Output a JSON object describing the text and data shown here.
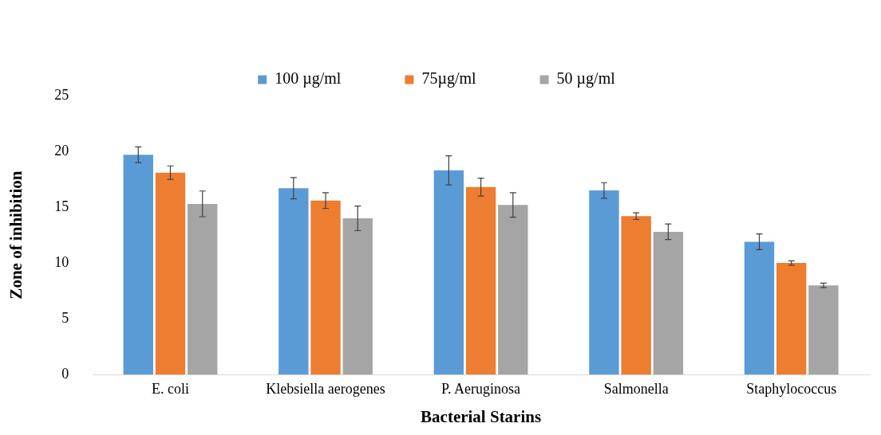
{
  "chart_data": {
    "type": "bar",
    "xlabel": "Bacterial Starins",
    "ylabel": "Zone of inhibition",
    "categories": [
      "E. coli",
      "Klebsiella aerogenes",
      "P. Aeruginosa",
      "Salmonella",
      "Staphylococcus"
    ],
    "series": [
      {
        "name": "100 µg/ml",
        "color": "#5b9bd5",
        "values": [
          19.7,
          16.7,
          18.3,
          16.5,
          11.9
        ],
        "errors": [
          0.7,
          0.95,
          1.3,
          0.7,
          0.7
        ]
      },
      {
        "name": "75µg/ml",
        "color": "#ed7d31",
        "values": [
          18.1,
          15.6,
          16.8,
          14.2,
          10.0
        ],
        "errors": [
          0.6,
          0.7,
          0.8,
          0.3,
          0.2
        ]
      },
      {
        "name": "50 µg/ml",
        "color": "#a5a5a5",
        "values": [
          15.3,
          14.0,
          15.2,
          12.8,
          8.0
        ],
        "errors": [
          1.15,
          1.1,
          1.1,
          0.7,
          0.2
        ]
      }
    ],
    "ylim": [
      0,
      25
    ],
    "yticks": [
      0,
      5,
      10,
      15,
      20,
      25
    ],
    "grid": false,
    "legend": "top"
  }
}
